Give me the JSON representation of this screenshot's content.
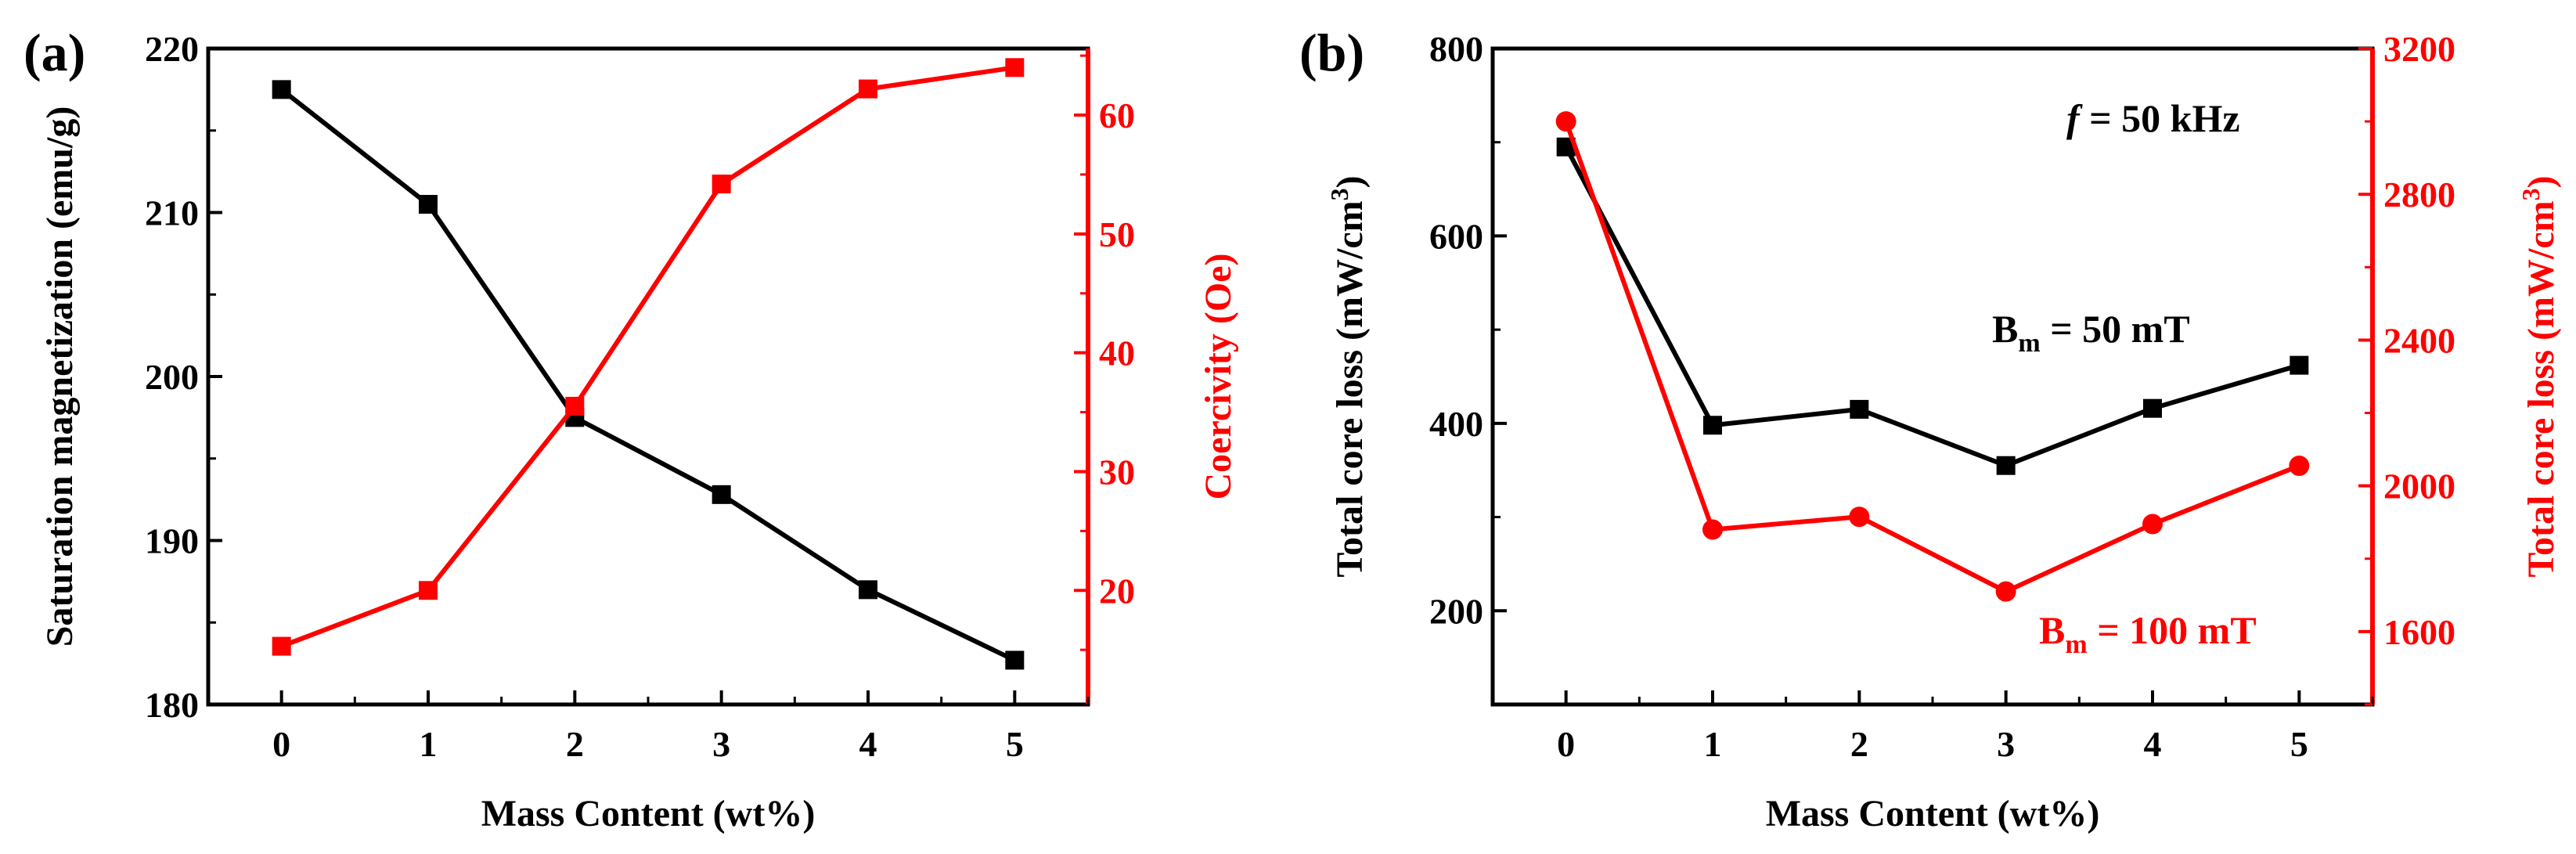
{
  "chart_data": [
    {
      "panel_label": "(a)",
      "type": "line",
      "xlabel": "Mass Content (wt%)",
      "x": [
        0,
        1,
        2,
        3,
        4,
        5
      ],
      "x_ticks": [
        "0",
        "1",
        "2",
        "3",
        "4",
        "5"
      ],
      "xlim": [
        -0.5,
        5.5
      ],
      "left_axis": {
        "label": "Saturation magnetization (emu/g)",
        "ylim": [
          180,
          220
        ],
        "ticks": [
          "180",
          "190",
          "200",
          "210",
          "220"
        ],
        "color": "#000000"
      },
      "right_axis": {
        "label": "Coercivity (Oe)",
        "ylim": [
          10.4,
          65.6
        ],
        "ticks": [
          "20",
          "30",
          "40",
          "50",
          "60"
        ],
        "color": "#ff0000"
      },
      "series": [
        {
          "name": "Saturation magnetization",
          "axis": "left",
          "marker": "square",
          "color": "#000000",
          "values": [
            217.5,
            210.5,
            197.5,
            192.8,
            187.0,
            182.7
          ]
        },
        {
          "name": "Coercivity",
          "axis": "right",
          "marker": "square",
          "color": "#ff0000",
          "values": [
            15.3,
            20.0,
            35.5,
            54.2,
            62.2,
            64.0
          ]
        }
      ]
    },
    {
      "panel_label": "(b)",
      "type": "line",
      "xlabel": "Mass Content (wt%)",
      "x": [
        0,
        1,
        2,
        3,
        4,
        5
      ],
      "x_ticks": [
        "0",
        "1",
        "2",
        "3",
        "4",
        "5"
      ],
      "xlim": [
        -0.5,
        5.5
      ],
      "left_axis": {
        "label": "Total core loss (mW/cm",
        "label_sup": "3",
        "label_end": ")",
        "ylim": [
          100,
          800
        ],
        "ticks": [
          "200",
          "400",
          "600",
          "800"
        ],
        "color": "#000000"
      },
      "right_axis": {
        "label": "Total core loss (mW/cm",
        "label_sup": "3",
        "label_end": ")",
        "ylim": [
          1400,
          3200
        ],
        "ticks": [
          "1600",
          "2000",
          "2400",
          "2800",
          "3200"
        ],
        "color": "#ff0000"
      },
      "annotations": {
        "freq_symbol": "f",
        "freq_text": " = 50 kHz",
        "bm50_main": "B",
        "bm50_sub": "m",
        "bm50_rest": " = 50 mT",
        "bm100_main": "B",
        "bm100_sub": "m",
        "bm100_rest": " = 100 mT"
      },
      "series": [
        {
          "name": "Bm = 50 mT",
          "axis": "left",
          "marker": "square",
          "color": "#000000",
          "values": [
            695,
            398,
            415,
            355,
            416,
            462
          ]
        },
        {
          "name": "Bm = 100 mT",
          "axis": "right",
          "marker": "circle",
          "color": "#ff0000",
          "values": [
            3000,
            1880,
            1915,
            1710,
            1895,
            2055
          ]
        }
      ]
    }
  ]
}
